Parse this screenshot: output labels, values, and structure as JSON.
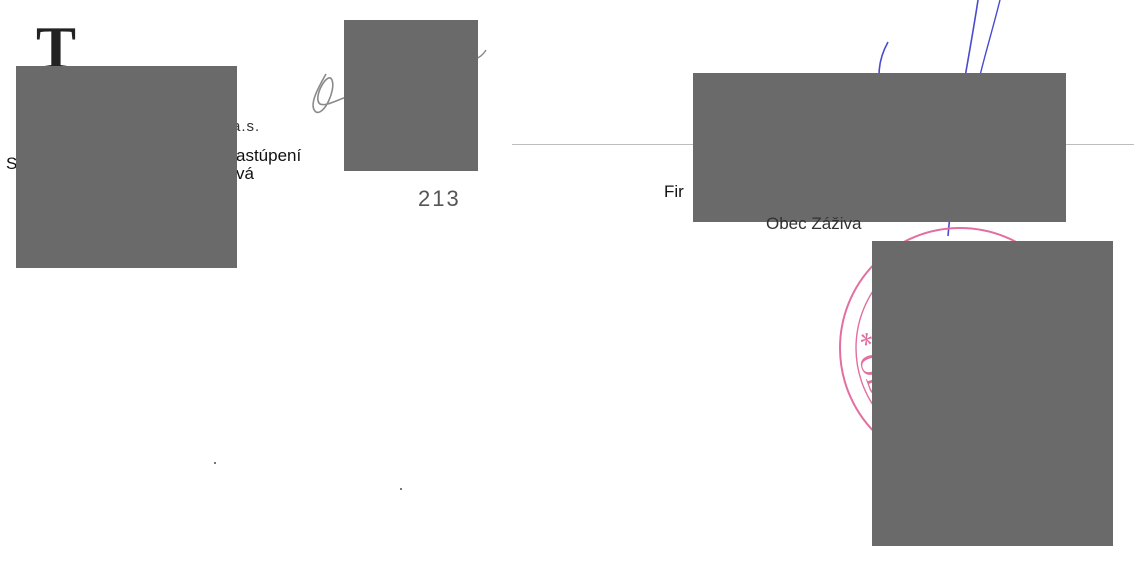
{
  "left_block": {
    "logo_letter": "T",
    "company_suffix": "a.s.",
    "line1_fragment": "S",
    "line1_end": "astúpení",
    "line2_end": "vá"
  },
  "page_number": "213",
  "right_block": {
    "line1_fragment": "Fir",
    "line2": "Obec Záživa"
  },
  "stamp": {
    "text_fragment": "* OB"
  },
  "colors": {
    "ink_signature": "#4a4ad0",
    "stamp": "#e26fa0",
    "redaction": "#6a6a6a"
  }
}
